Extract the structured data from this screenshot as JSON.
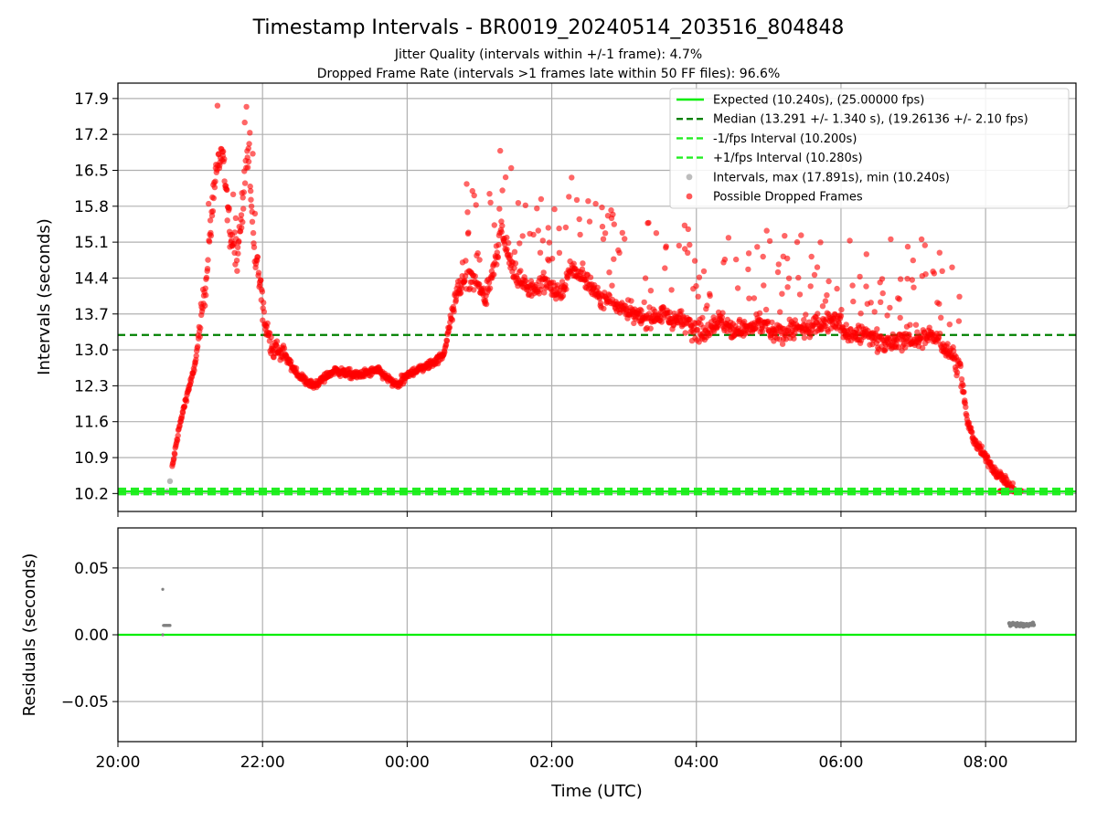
{
  "chart_data": [
    {
      "type": "scatter",
      "title": "Timestamp Intervals - BR0019_20240514_203516_804848",
      "subtitle_lines": [
        "Jitter Quality (intervals within +/-1 frame): 4.7%",
        "Dropped Frame Rate (intervals >1 frames late within 50 FF files): 96.6%"
      ],
      "ylabel": "Intervals (seconds)",
      "xlabel": "",
      "ylim": [
        9.85,
        18.2
      ],
      "yticks": [
        "10.2",
        "10.9",
        "11.6",
        "12.3",
        "13.0",
        "13.7",
        "14.4",
        "15.1",
        "15.8",
        "16.5",
        "17.2",
        "17.9"
      ],
      "grid": true,
      "legend_position": "top-right",
      "legend": [
        {
          "label": "Expected (10.240s), (25.00000 fps)",
          "style": "solid",
          "color": "#00ee00"
        },
        {
          "label": "Median (13.291 +/- 1.340 s), (19.26136 +/- 2.10 fps)",
          "style": "dashed",
          "color": "#008000"
        },
        {
          "label": "-1/fps Interval (10.200s)",
          "style": "dashed",
          "color": "#22ee22"
        },
        {
          "label": "+1/fps Interval (10.280s)",
          "style": "dashed",
          "color": "#22ee22"
        },
        {
          "label": "Intervals, max (17.891s), min (10.240s)",
          "style": "marker",
          "color": "#999999"
        },
        {
          "label": "Possible Dropped Frames",
          "style": "marker",
          "color": "#ff0000"
        }
      ],
      "reference_lines": {
        "expected": 10.24,
        "median": 13.291,
        "minus_one_fps": 10.2,
        "plus_one_fps": 10.28
      },
      "series": [
        {
          "name": "Possible Dropped Frames",
          "color": "#ff0000",
          "x_hours": [
            20.75,
            20.85,
            20.95,
            21.05,
            21.12,
            21.2,
            21.28,
            21.35,
            21.45,
            21.55,
            21.65,
            21.8,
            21.88,
            21.95,
            22.0,
            22.05,
            22.15,
            22.3,
            22.5,
            22.7,
            23.0,
            23.3,
            23.6,
            23.85,
            24.1,
            24.3,
            24.5,
            24.7,
            24.9,
            25.1,
            25.3,
            25.5,
            25.7,
            25.9,
            26.1,
            26.3,
            26.5,
            26.7,
            26.9,
            27.1,
            27.3,
            27.5,
            27.7,
            27.9,
            28.1,
            28.3,
            28.5,
            28.7,
            28.9,
            29.1,
            29.3,
            29.5,
            29.7,
            29.9,
            30.1,
            30.3,
            30.5,
            30.7,
            30.9,
            31.1,
            31.3,
            31.45,
            31.55,
            31.65,
            31.75,
            31.85,
            31.95,
            32.05,
            32.15,
            32.25,
            32.35,
            32.42
          ],
          "y": [
            10.7,
            11.5,
            12.1,
            12.6,
            13.2,
            14.2,
            15.3,
            16.5,
            16.8,
            15.3,
            14.9,
            16.9,
            15.0,
            14.5,
            13.9,
            13.4,
            13.0,
            12.9,
            12.5,
            12.3,
            12.6,
            12.5,
            12.6,
            12.3,
            12.6,
            12.7,
            12.9,
            14.2,
            14.4,
            14.0,
            15.3,
            14.4,
            14.2,
            14.3,
            14.1,
            14.6,
            14.3,
            14.0,
            13.9,
            13.7,
            13.6,
            13.7,
            13.6,
            13.5,
            13.3,
            13.6,
            13.4,
            13.4,
            13.5,
            13.3,
            13.4,
            13.4,
            13.5,
            13.6,
            13.3,
            13.3,
            13.2,
            13.1,
            13.2,
            13.2,
            13.3,
            13.0,
            12.9,
            12.6,
            11.6,
            11.2,
            11.0,
            10.8,
            10.6,
            10.5,
            10.3,
            10.25
          ]
        },
        {
          "name": "Intervals, max (17.891s), min (10.240s)",
          "color": "#999999",
          "x_hours": [
            20.6,
            20.68,
            20.72,
            32.35,
            32.45,
            32.55,
            32.62
          ],
          "y": [
            10.24,
            10.24,
            10.44,
            10.25,
            10.25,
            10.24,
            10.25
          ]
        }
      ]
    },
    {
      "type": "scatter",
      "title": "",
      "xlabel": "Time (UTC)",
      "ylabel": "Residuals (seconds)",
      "ylim": [
        -0.08,
        0.08
      ],
      "yticks": [
        "−0.05",
        "0.00",
        "0.05"
      ],
      "xticks": [
        "20:00",
        "22:00",
        "00:00",
        "02:00",
        "04:00",
        "06:00",
        "08:00"
      ],
      "xlim_hours": [
        20.0,
        33.25
      ],
      "grid": true,
      "zero_line_color": "#00ee00",
      "series": [
        {
          "name": "",
          "color": "#808080",
          "x_hours": [
            20.62,
            20.62,
            20.64,
            20.66,
            20.68,
            20.7,
            20.72,
            32.35,
            32.4,
            32.45,
            32.5,
            32.55,
            32.6,
            32.65
          ],
          "y": [
            0.034,
            0.0,
            0.007,
            0.007,
            0.007,
            0.007,
            0.007,
            0.007,
            0.008,
            0.007,
            0.008,
            0.007,
            0.008,
            0.007
          ]
        }
      ]
    }
  ]
}
